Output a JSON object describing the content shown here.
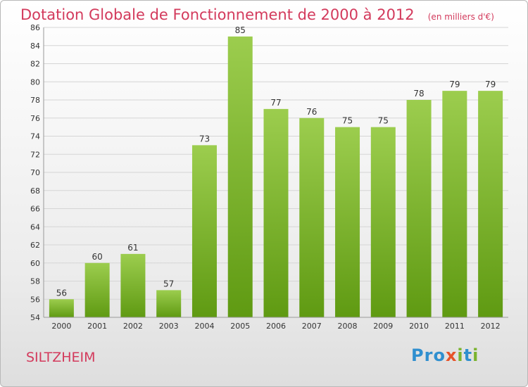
{
  "title": "Dotation Globale de Fonctionnement de 2000 à 2012",
  "unit": "(en milliers d'€)",
  "commune": "SILTZHEIM",
  "logo": {
    "text": "Proxiti",
    "chars": [
      "P",
      "r",
      "o",
      "x",
      "i",
      "t",
      "i"
    ]
  },
  "colors": {
    "title": "#d33a5c",
    "bar_top": "#9ccd4e",
    "bar_bottom": "#5f9a12",
    "grid": "#d5d5d5",
    "axis": "#999999"
  },
  "chart_data": {
    "type": "bar",
    "title": "Dotation Globale de Fonctionnement de 2000 à 2012",
    "subtitle": "(en milliers d'€)",
    "xlabel": "",
    "ylabel": "",
    "categories": [
      "2000",
      "2001",
      "2002",
      "2003",
      "2004",
      "2005",
      "2006",
      "2007",
      "2008",
      "2009",
      "2010",
      "2011",
      "2012"
    ],
    "values": [
      56,
      60,
      61,
      57,
      73,
      85,
      77,
      76,
      75,
      75,
      78,
      79,
      79
    ],
    "ylim": [
      54,
      86
    ],
    "yticks": [
      54,
      56,
      58,
      60,
      62,
      64,
      66,
      68,
      70,
      72,
      74,
      76,
      78,
      80,
      82,
      84,
      86
    ],
    "grid": "horizontal",
    "data_labels": true,
    "legend": "none"
  }
}
